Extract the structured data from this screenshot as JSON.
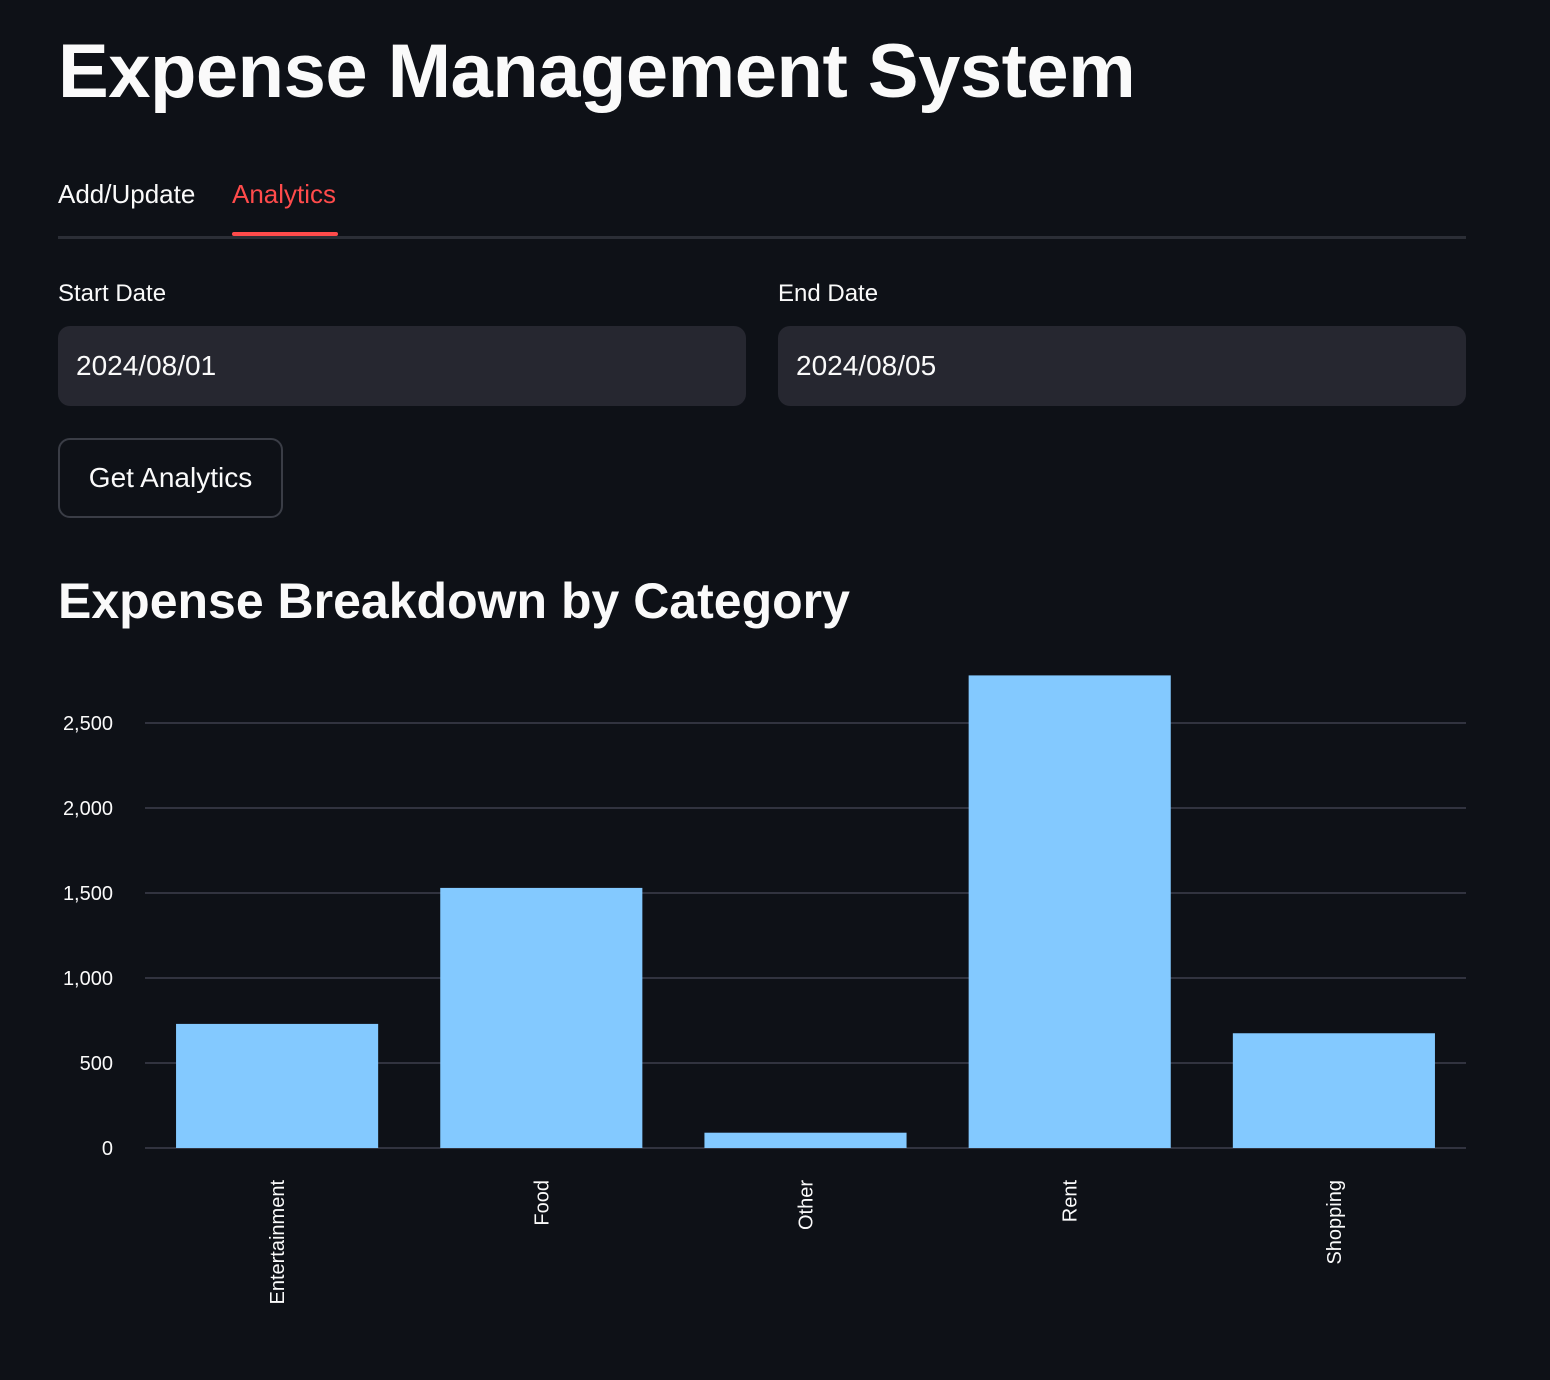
{
  "app": {
    "title": "Expense Management System"
  },
  "tabs": [
    {
      "label": "Add/Update",
      "active": false
    },
    {
      "label": "Analytics",
      "active": true
    }
  ],
  "filters": {
    "start_label": "Start Date",
    "start_value": "2024/08/01",
    "end_label": "End Date",
    "end_value": "2024/08/05"
  },
  "actions": {
    "get_analytics_label": "Get Analytics"
  },
  "section": {
    "title": "Expense Breakdown by Category"
  },
  "colors": {
    "background": "#0e1117",
    "accent": "#ff4b4b",
    "bar": "#83c9ff",
    "grid": "#31333f"
  },
  "chart_data": {
    "type": "bar",
    "title": "Expense Breakdown by Category",
    "categories": [
      "Entertainment",
      "Food",
      "Other",
      "Rent",
      "Shopping"
    ],
    "values": [
      730,
      1530,
      90,
      2780,
      675
    ],
    "xlabel": "",
    "ylabel": "",
    "ylim": [
      0,
      2800
    ],
    "yticks": [
      0,
      500,
      1000,
      1500,
      2000,
      2500
    ],
    "ytick_labels": [
      "0",
      "500",
      "1,000",
      "1,500",
      "2,000",
      "2,500"
    ],
    "grid": true
  }
}
